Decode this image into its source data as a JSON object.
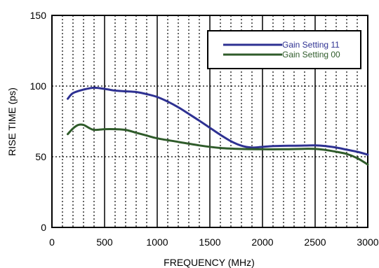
{
  "chart_data": {
    "type": "line",
    "xlabel": "FREQUENCY (MHz)",
    "ylabel": "RISE TIME (ps)",
    "xlim": [
      0,
      3000
    ],
    "ylim": [
      0,
      150
    ],
    "x_ticks": [
      0,
      500,
      1000,
      1500,
      2000,
      2500,
      3000
    ],
    "y_ticks": [
      0,
      50,
      100,
      150
    ],
    "grid": true,
    "legend_position": "top-right",
    "series": [
      {
        "name": "Gain Setting 11",
        "color": "#2e3192",
        "x": [
          150,
          200,
          300,
          400,
          500,
          600,
          700,
          800,
          900,
          1000,
          1100,
          1200,
          1300,
          1400,
          1500,
          1600,
          1700,
          1800,
          1900,
          2000,
          2100,
          2200,
          2300,
          2400,
          2500,
          2600,
          2700,
          2800,
          2900,
          3000
        ],
        "y": [
          91,
          95,
          97.5,
          98.8,
          98,
          96.8,
          96.3,
          95.8,
          94.3,
          92.3,
          89,
          85,
          80.3,
          75.5,
          70.5,
          65.5,
          61,
          57.8,
          56.5,
          57,
          57.5,
          57.7,
          57.8,
          57.9,
          58,
          57.5,
          56.5,
          55,
          53.5,
          51.5
        ]
      },
      {
        "name": "Gain Setting 00",
        "color": "#2f5b2a",
        "x": [
          150,
          200,
          250,
          300,
          350,
          400,
          500,
          600,
          700,
          800,
          900,
          1000,
          1200,
          1400,
          1600,
          1800,
          2000,
          2200,
          2400,
          2500,
          2600,
          2700,
          2800,
          2900,
          3000
        ],
        "y": [
          66,
          70,
          72.5,
          72.5,
          70.5,
          69,
          69.5,
          69.5,
          69,
          67,
          65,
          63,
          60.5,
          58,
          56.2,
          55.5,
          55.3,
          55.3,
          55.6,
          55.5,
          54.8,
          53.5,
          52,
          49,
          44.5
        ]
      }
    ]
  }
}
